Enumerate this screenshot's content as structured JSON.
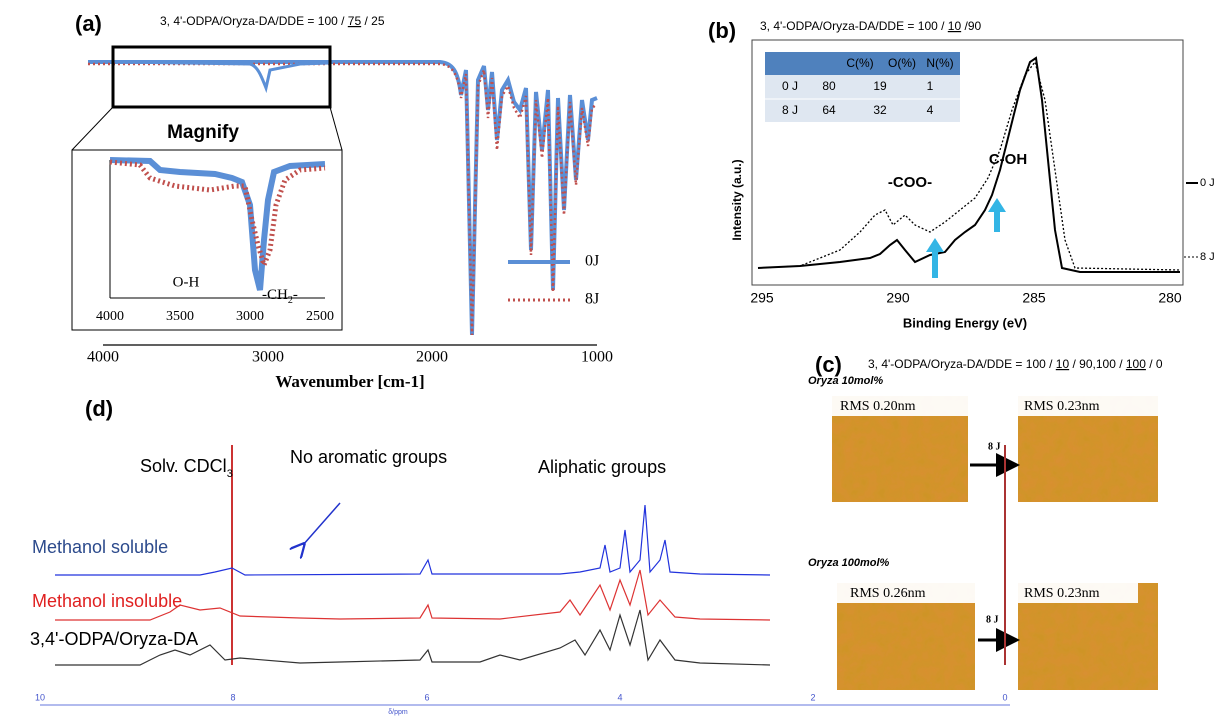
{
  "panel_a": {
    "label": "(a)",
    "subtitle": [
      "3, 4'-ODPA/Oryza-DA/DDE = 100 / ",
      "75",
      " / 25"
    ],
    "inset_title": "Magnify",
    "inset_ticks": [
      "4000",
      "3500",
      "3000",
      "2500"
    ],
    "annotations": {
      "oh": "O-H",
      "ch2": [
        "-CH",
        "2",
        "-"
      ]
    },
    "x_ticks": [
      "4000",
      "3000",
      "2000",
      "1000"
    ],
    "x_title": "Wavenumber [cm-1]",
    "legend": [
      "0J",
      "8J"
    ]
  },
  "panel_b": {
    "label": "(b)",
    "subtitle": [
      "3, 4'-ODPA/Oryza-DA/DDE = 100 / ",
      "10",
      " /90"
    ],
    "table": {
      "header": [
        "",
        "C(%)",
        "O(%)",
        "N(%)"
      ],
      "rows": [
        [
          "0 J",
          "80",
          "19",
          "1"
        ],
        [
          "8 J",
          "64",
          "32",
          "4"
        ]
      ]
    },
    "annotations": {
      "coo": "-COO-",
      "coh": "C-OH"
    },
    "y_title": "Intensity (a.u.)",
    "x_ticks": [
      "295",
      "290",
      "285",
      "280"
    ],
    "x_title": "Binding Energy (eV)",
    "legend": [
      "0 J",
      "8 J"
    ]
  },
  "panel_c": {
    "label": "(c)",
    "subtitle": [
      "3, 4'-ODPA/Oryza-DA/DDE = 100 / ",
      "10",
      " / 90,100 / ",
      "100",
      " / 0"
    ],
    "rows": [
      {
        "title": "Oryza 10mol%",
        "before": "RMS 0.20nm",
        "after": "RMS 0.23nm",
        "arrow": "8 J"
      },
      {
        "title": "Oryza 100mol%",
        "before": "RMS 0.26nm",
        "after": "RMS 0.23nm",
        "arrow": "8 J"
      }
    ]
  },
  "panel_d": {
    "label": "(d)",
    "solvent": [
      "Solv. CDCl",
      "3"
    ],
    "annotations": {
      "aromatic": "No aromatic groups",
      "aliphatic": "Aliphatic groups"
    },
    "traces": [
      "Methanol soluble",
      "Methanol insoluble",
      "3,4'-ODPA/Oryza-DA"
    ],
    "x_ticks": [
      "10",
      "8",
      "6",
      "4",
      "2",
      "0"
    ],
    "x_title": "δ/ppm"
  }
}
